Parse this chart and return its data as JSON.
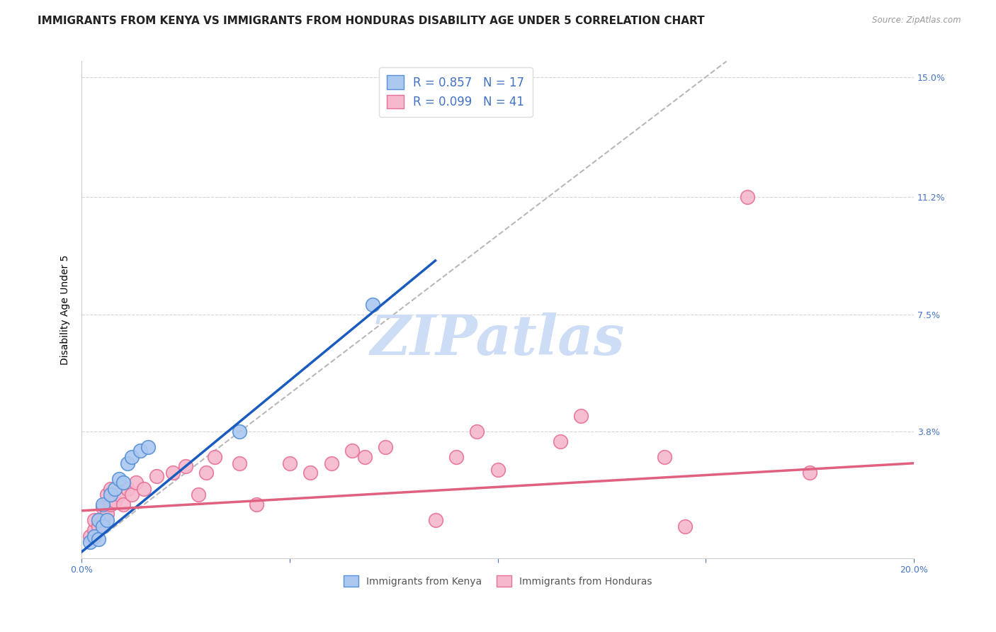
{
  "title": "IMMIGRANTS FROM KENYA VS IMMIGRANTS FROM HONDURAS DISABILITY AGE UNDER 5 CORRELATION CHART",
  "source": "Source: ZipAtlas.com",
  "ylabel_label": "Disability Age Under 5",
  "xlim": [
    0.0,
    0.2
  ],
  "ylim": [
    -0.002,
    0.155
  ],
  "kenya_R": 0.857,
  "kenya_N": 17,
  "honduras_R": 0.099,
  "honduras_N": 41,
  "kenya_color": "#aac8f0",
  "kenya_edge_color": "#5590d8",
  "honduras_color": "#f5b8cc",
  "honduras_edge_color": "#e87098",
  "kenya_line_color": "#1a5bbf",
  "honduras_line_color": "#e06080",
  "diagonal_color": "#b8b8b8",
  "watermark": "ZIPatlas",
  "watermark_color": "#ccddf5",
  "kenya_points_x": [
    0.002,
    0.003,
    0.004,
    0.004,
    0.005,
    0.005,
    0.006,
    0.007,
    0.008,
    0.009,
    0.01,
    0.011,
    0.012,
    0.014,
    0.016,
    0.038,
    0.07
  ],
  "kenya_points_y": [
    0.003,
    0.005,
    0.004,
    0.01,
    0.008,
    0.015,
    0.01,
    0.018,
    0.02,
    0.023,
    0.022,
    0.028,
    0.03,
    0.032,
    0.033,
    0.038,
    0.078
  ],
  "honduras_points_x": [
    0.002,
    0.003,
    0.003,
    0.004,
    0.005,
    0.005,
    0.006,
    0.006,
    0.007,
    0.007,
    0.008,
    0.009,
    0.01,
    0.011,
    0.012,
    0.013,
    0.015,
    0.018,
    0.022,
    0.025,
    0.028,
    0.03,
    0.032,
    0.038,
    0.042,
    0.05,
    0.055,
    0.06,
    0.065,
    0.068,
    0.073,
    0.085,
    0.09,
    0.095,
    0.1,
    0.115,
    0.12,
    0.14,
    0.145,
    0.16,
    0.175
  ],
  "honduras_points_y": [
    0.005,
    0.007,
    0.01,
    0.008,
    0.01,
    0.014,
    0.012,
    0.018,
    0.015,
    0.02,
    0.016,
    0.018,
    0.015,
    0.02,
    0.018,
    0.022,
    0.02,
    0.024,
    0.025,
    0.027,
    0.018,
    0.025,
    0.03,
    0.028,
    0.015,
    0.028,
    0.025,
    0.028,
    0.032,
    0.03,
    0.033,
    0.01,
    0.03,
    0.038,
    0.026,
    0.035,
    0.043,
    0.03,
    0.008,
    0.112,
    0.025
  ],
  "kenya_line_x": [
    0.0,
    0.085
  ],
  "kenya_line_y": [
    0.0,
    0.092
  ],
  "honduras_line_x": [
    0.0,
    0.2
  ],
  "honduras_line_y": [
    0.013,
    0.028
  ],
  "background_color": "#ffffff",
  "grid_color": "#d5d5d5",
  "right_tick_color": "#4472c4",
  "title_fontsize": 11,
  "axis_label_fontsize": 10,
  "tick_fontsize": 9,
  "legend_fontsize": 12
}
